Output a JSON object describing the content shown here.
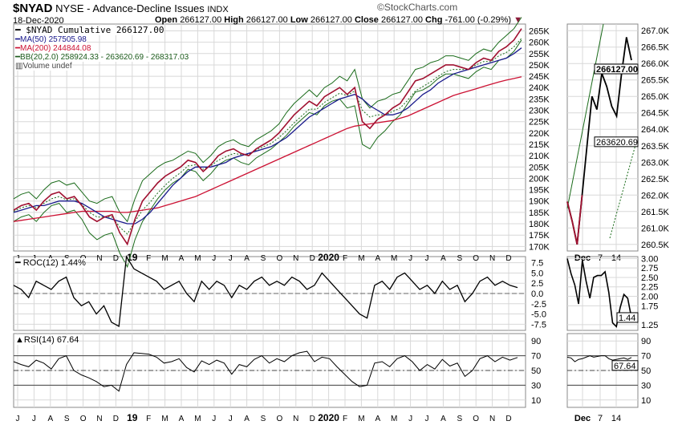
{
  "header": {
    "symbol": "$NYAD",
    "name": "NYSE - Advance-Decline Issues",
    "exchange": "INDX",
    "date": "18-Dec-2020",
    "open_label": "Open",
    "open": "266127.00",
    "high_label": "High",
    "high": "266127.00",
    "low_label": "Low",
    "low": "266127.00",
    "close_label": "Close",
    "close": "266127.00",
    "chg_label": "Chg",
    "chg": "-761.00 (-0.29%)",
    "watermark": "©StockCharts.com"
  },
  "legend": {
    "main": "$NYAD Cumulative 266127.00",
    "ma50": "MA(50) 257505.98",
    "ma200": "MA(200) 244844.08",
    "bb": "BB(20,2.0) 258924.33 - 263620.69 - 268317.03",
    "volume": "Volume undef",
    "roc": "ROC(12) 1.44%",
    "rsi": "RSI(14) 67.64"
  },
  "colors": {
    "price": "#000000",
    "ma50": "#1a1a8c",
    "ma200": "#cc1133",
    "bb": "#1a6b1a",
    "price_down": "#a01030",
    "grid": "#d8d8d8"
  },
  "chart_data": {
    "type": "line",
    "x_labels": [
      "J",
      "J",
      "A",
      "S",
      "O",
      "N",
      "D",
      "19",
      "F",
      "M",
      "A",
      "M",
      "J",
      "J",
      "A",
      "S",
      "O",
      "N",
      "D",
      "2020",
      "F",
      "M",
      "A",
      "M",
      "J",
      "J",
      "A",
      "S",
      "O",
      "N",
      "D"
    ],
    "main": {
      "y_ticks": [
        "170K",
        "175K",
        "180K",
        "185K",
        "190K",
        "195K",
        "200K",
        "205K",
        "210K",
        "215K",
        "220K",
        "225K",
        "230K",
        "235K",
        "240K",
        "245K",
        "250K",
        "255K",
        "260K",
        "265K"
      ],
      "ylim": [
        168,
        268
      ],
      "price": [
        186,
        188,
        189,
        186,
        190,
        193,
        194,
        191,
        192,
        188,
        183,
        181,
        183,
        184,
        176,
        171,
        182,
        190,
        194,
        198,
        201,
        203,
        205,
        208,
        207,
        203,
        206,
        210,
        212,
        213,
        211,
        210,
        213,
        215,
        217,
        220,
        224,
        228,
        231,
        234,
        232,
        236,
        238,
        240,
        237,
        240,
        225,
        222,
        226,
        228,
        231,
        233,
        238,
        243,
        244,
        246,
        248,
        250,
        250,
        249,
        248,
        251,
        253,
        252,
        256,
        258,
        261,
        266
      ],
      "ma50": [
        185,
        186,
        187,
        188,
        188,
        189,
        190,
        190,
        190,
        189,
        187,
        185,
        183,
        182,
        181,
        180,
        180,
        182,
        185,
        189,
        193,
        197,
        200,
        203,
        205,
        205,
        205,
        206,
        207,
        209,
        210,
        211,
        212,
        213,
        214,
        216,
        218,
        221,
        224,
        227,
        229,
        231,
        233,
        235,
        236,
        237,
        235,
        232,
        230,
        228,
        228,
        229,
        231,
        234,
        237,
        239,
        242,
        244,
        246,
        247,
        248,
        249,
        250,
        251,
        252,
        253,
        255,
        257.5
      ],
      "ma200": [
        181,
        181.5,
        182,
        182.5,
        183,
        183.5,
        184,
        184.5,
        185,
        185.5,
        185.5,
        185.5,
        185.5,
        185.5,
        185,
        185,
        185.5,
        186,
        186.5,
        187,
        188,
        189,
        190,
        191,
        192,
        193.5,
        195,
        196.5,
        198,
        199.5,
        201,
        202.5,
        204,
        205.5,
        207,
        208.5,
        210,
        211.5,
        213,
        214.5,
        216,
        217.5,
        219,
        220.5,
        222,
        223,
        223.5,
        224,
        224.5,
        225,
        225.5,
        226.5,
        227.5,
        229,
        230.5,
        232,
        233.5,
        235,
        236.5,
        237.5,
        238.5,
        239.5,
        240.5,
        241.5,
        242.5,
        243.3,
        244,
        244.8
      ],
      "bb_width": [
        5,
        5,
        5,
        5,
        5,
        5,
        5,
        6,
        6,
        6,
        7,
        8,
        8,
        8,
        9,
        10,
        9,
        9,
        8,
        7,
        6,
        5,
        5,
        4,
        4,
        4,
        4,
        4,
        4,
        4,
        4,
        4,
        4,
        4,
        4,
        4,
        5,
        5,
        5,
        5,
        4,
        4,
        4,
        5,
        6,
        8,
        10,
        9,
        8,
        7,
        6,
        5,
        5,
        5,
        5,
        5,
        4,
        4,
        4,
        4,
        4,
        4,
        4,
        4,
        4,
        5,
        5,
        5
      ]
    },
    "main_zoom": {
      "x_labels": [
        "Dec",
        "7",
        "14"
      ],
      "y_ticks": [
        "260.5K",
        "261.0K",
        "261.5K",
        "262.0K",
        "262.5K",
        "263.0K",
        "263.5K",
        "264.0K",
        "264.5K",
        "265.0K",
        "265.5K",
        "266.0K",
        "266.5K",
        "267.0K"
      ],
      "ylim": [
        260.3,
        267.2
      ],
      "price": [
        261.8,
        261.2,
        260.5,
        262.0,
        263.5,
        265.0,
        264.6,
        265.7,
        265.3,
        264.7,
        264.4,
        265.7,
        266.8,
        266.1
      ],
      "last_label": "266127.00",
      "mid_label": "263620.69"
    },
    "roc": {
      "y_ticks": [
        "7.5",
        "5.0",
        "2.5",
        "0.0",
        "-2.5",
        "-5.0",
        "-7.5"
      ],
      "ylim": [
        -9,
        9
      ],
      "values": [
        2,
        1,
        -1,
        3,
        2,
        1,
        3,
        4,
        -1,
        -3,
        -2,
        -5,
        -3,
        -7,
        -8,
        9,
        6,
        5,
        4,
        3,
        1,
        2,
        3,
        0,
        -2,
        3,
        1,
        3,
        2,
        -1,
        2,
        1,
        3,
        4,
        2,
        3,
        2,
        4,
        3,
        1,
        2,
        5,
        3,
        1,
        -1,
        -3,
        -5,
        -6,
        2,
        3,
        1,
        4,
        5,
        3,
        1,
        2,
        0,
        3,
        1,
        2,
        -2,
        0,
        3,
        4,
        2,
        3,
        2,
        1.44
      ],
      "zoom": {
        "y_ticks": [
          "3.00",
          "2.75",
          "2.50",
          "2.25",
          "2.00",
          "1.75",
          "1.25"
        ],
        "ylim": [
          1.1,
          3.05
        ],
        "values": [
          3.0,
          2.6,
          2.3,
          1.8,
          2.95,
          2.4,
          1.95,
          2.5,
          2.55,
          2.55,
          2.65,
          2.1,
          1.3,
          1.2,
          1.7,
          2.05,
          1.95,
          1.44
        ],
        "last_label": "1.44"
      }
    },
    "rsi": {
      "y_ticks": [
        "90",
        "70",
        "50",
        "30",
        "10"
      ],
      "ylim": [
        0,
        100
      ],
      "values": [
        62,
        58,
        55,
        64,
        60,
        52,
        66,
        70,
        50,
        44,
        40,
        35,
        28,
        30,
        22,
        58,
        74,
        73,
        72,
        68,
        60,
        62,
        66,
        54,
        48,
        63,
        58,
        64,
        60,
        45,
        58,
        55,
        65,
        70,
        60,
        66,
        62,
        70,
        74,
        76,
        62,
        68,
        66,
        55,
        45,
        35,
        28,
        30,
        60,
        62,
        55,
        66,
        70,
        62,
        50,
        58,
        52,
        65,
        56,
        60,
        42,
        50,
        66,
        70,
        62,
        68,
        64,
        67.64
      ],
      "zoom": {
        "values": [
          68,
          67,
          62,
          65,
          66,
          68,
          70,
          68,
          69,
          70,
          70,
          66,
          64,
          65,
          66,
          67,
          65,
          67.64
        ],
        "last_label": "67.64"
      }
    },
    "zoom_x_labels": [
      "Dec",
      "7",
      "14"
    ]
  }
}
